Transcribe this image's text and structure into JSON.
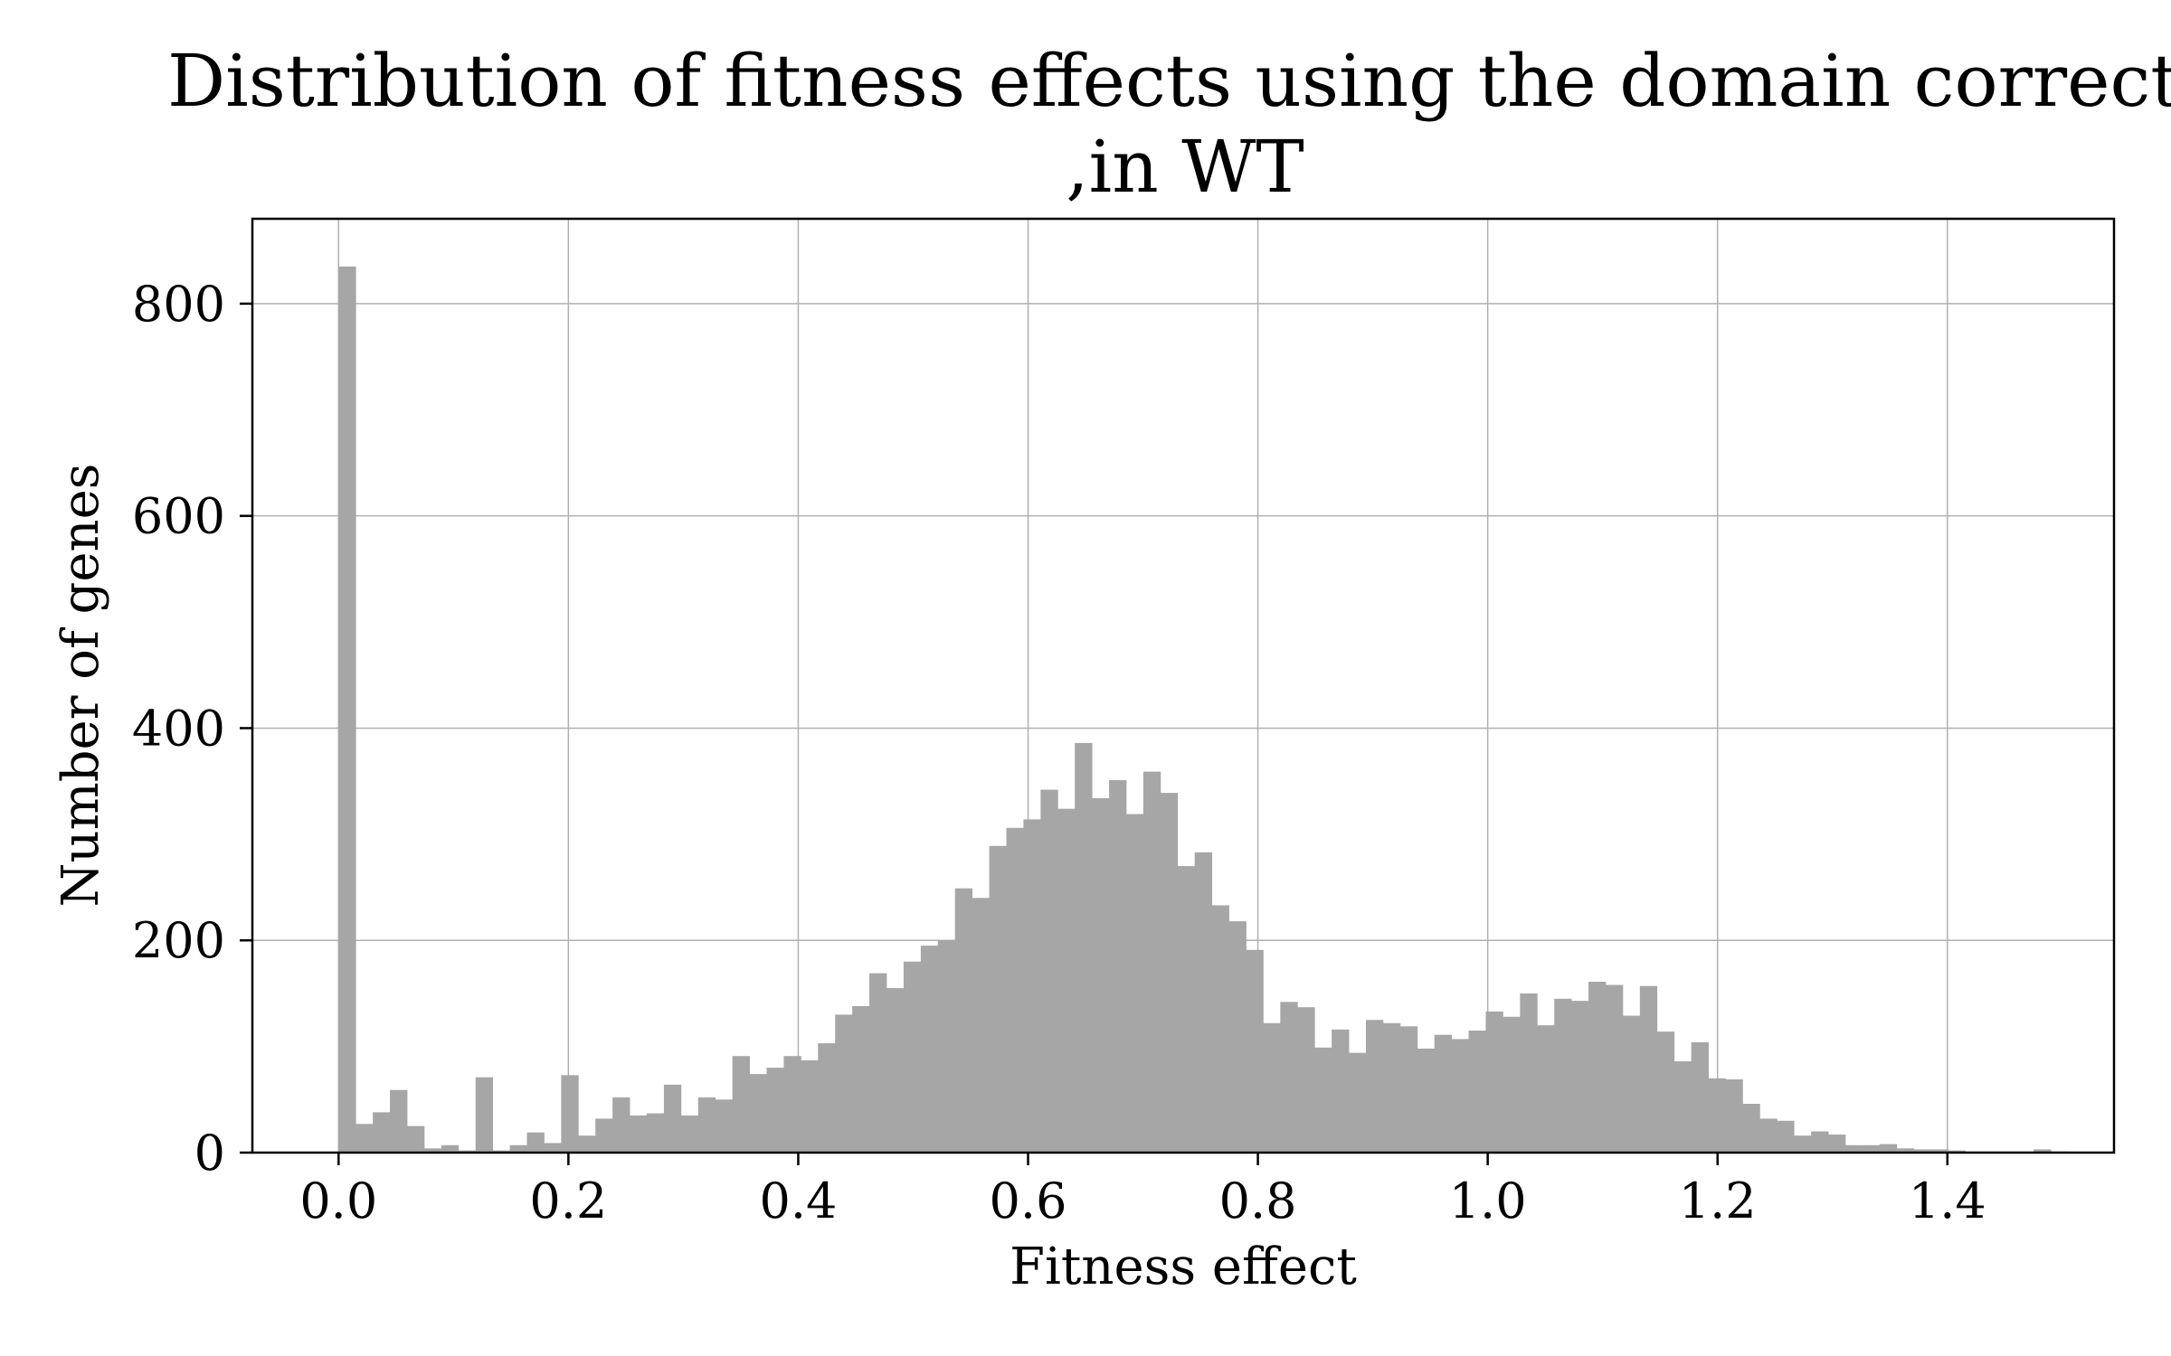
{
  "chart_data": {
    "type": "bar",
    "title_lines": [
      "Distribution of fitness effects using the domain correcti",
      ",in WT"
    ],
    "xlabel": "Fitness effect",
    "ylabel": "Number of genes",
    "xlim": [
      -0.075,
      1.545
    ],
    "ylim": [
      0,
      880
    ],
    "xticks": [
      0.0,
      0.2,
      0.4,
      0.6,
      0.8,
      1.0,
      1.2,
      1.4
    ],
    "xtick_labels": [
      "0.0",
      "0.2",
      "0.4",
      "0.6",
      "0.8",
      "1.0",
      "1.2",
      "1.4"
    ],
    "yticks": [
      0,
      200,
      400,
      600,
      800
    ],
    "ytick_labels": [
      "0",
      "200",
      "400",
      "600",
      "800"
    ],
    "grid": true,
    "bar_color": "#a6a6a6",
    "bin_width": 0.0149,
    "bin_start": 0.0,
    "values": [
      835,
      27,
      38,
      59,
      25,
      4,
      7,
      2,
      71,
      2,
      7,
      19,
      9,
      73,
      16,
      32,
      52,
      35,
      37,
      64,
      35,
      52,
      50,
      91,
      74,
      80,
      91,
      87,
      103,
      130,
      138,
      169,
      155,
      180,
      195,
      200,
      249,
      240,
      289,
      306,
      314,
      342,
      324,
      386,
      334,
      351,
      319,
      359,
      339,
      270,
      283,
      233,
      218,
      191,
      122,
      142,
      137,
      99,
      116,
      94,
      125,
      122,
      119,
      98,
      111,
      107,
      115,
      133,
      128,
      150,
      120,
      145,
      143,
      161,
      158,
      129,
      157,
      114,
      86,
      104,
      70,
      69,
      46,
      32,
      30,
      16,
      20,
      17,
      7,
      7,
      8,
      4,
      3,
      3,
      2,
      1,
      1,
      1,
      1,
      3,
      1
    ]
  }
}
